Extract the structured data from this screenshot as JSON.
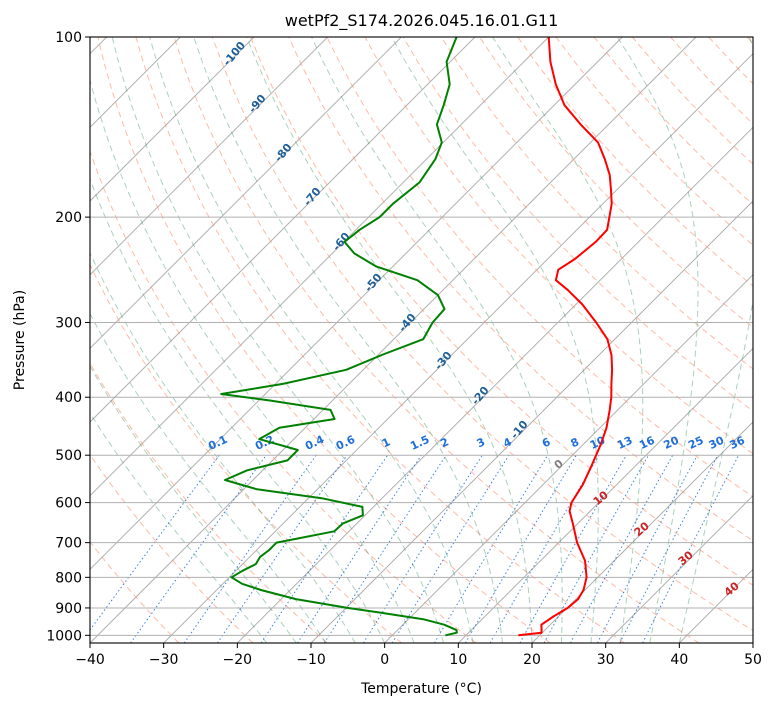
{
  "chart_data": {
    "type": "line",
    "subtype": "skew-t log-p",
    "title": "wetPf2_S174.2026.045.16.01.G11",
    "xlabel": "Temperature (°C)",
    "ylabel": "Pressure (hPa)",
    "xlim": [
      -40,
      50
    ],
    "ylim": [
      1030,
      100
    ],
    "yscale": "log",
    "grid": true,
    "x_ticks": [
      "−40",
      "−30",
      "−20",
      "−10",
      "0",
      "10",
      "20",
      "30",
      "40",
      "50"
    ],
    "x_tick_values": [
      -40,
      -30,
      -20,
      -10,
      0,
      10,
      20,
      30,
      40,
      50
    ],
    "y_ticks": [
      "100",
      "200",
      "300",
      "400",
      "500",
      "600",
      "700",
      "800",
      "900",
      "1000"
    ],
    "y_tick_values": [
      100,
      200,
      300,
      400,
      500,
      600,
      700,
      800,
      900,
      1000
    ],
    "series": [
      {
        "color": "#ff0000",
        "values": [
          [
            1000,
            17.1
          ],
          [
            990,
            19.9
          ],
          [
            960,
            18.8
          ],
          [
            930,
            19.3
          ],
          [
            900,
            20.1
          ],
          [
            870,
            20.3
          ],
          [
            840,
            19.8
          ],
          [
            800,
            18.5
          ],
          [
            750,
            16.0
          ],
          [
            700,
            12.5
          ],
          [
            650,
            9.3
          ],
          [
            620,
            7.2
          ],
          [
            600,
            6.3
          ],
          [
            560,
            5.4
          ],
          [
            520,
            4.0
          ],
          [
            480,
            2.4
          ],
          [
            450,
            0.9
          ],
          [
            420,
            -1.1
          ],
          [
            400,
            -2.6
          ],
          [
            380,
            -4.4
          ],
          [
            360,
            -6.2
          ],
          [
            340,
            -8.3
          ],
          [
            320,
            -11.0
          ],
          [
            300,
            -14.8
          ],
          [
            280,
            -19.1
          ],
          [
            265,
            -23.0
          ],
          [
            255,
            -26.0
          ],
          [
            245,
            -27.1
          ],
          [
            235,
            -26.3
          ],
          [
            220,
            -25.8
          ],
          [
            210,
            -25.9
          ],
          [
            200,
            -27.3
          ],
          [
            190,
            -28.8
          ],
          [
            180,
            -30.8
          ],
          [
            170,
            -33.0
          ],
          [
            160,
            -35.8
          ],
          [
            150,
            -39.0
          ],
          [
            140,
            -43.8
          ],
          [
            130,
            -48.6
          ],
          [
            120,
            -52.6
          ],
          [
            110,
            -56.4
          ],
          [
            100,
            -60.0
          ]
        ]
      },
      {
        "color": "#008000",
        "values": [
          [
            1000,
            7.2
          ],
          [
            990,
            8.4
          ],
          [
            980,
            8.0
          ],
          [
            960,
            5.6
          ],
          [
            940,
            2.0
          ],
          [
            920,
            -3.6
          ],
          [
            900,
            -9.8
          ],
          [
            870,
            -18.0
          ],
          [
            840,
            -24.0
          ],
          [
            820,
            -27.4
          ],
          [
            800,
            -29.7
          ],
          [
            780,
            -29.1
          ],
          [
            760,
            -28.2
          ],
          [
            740,
            -28.6
          ],
          [
            720,
            -28.3
          ],
          [
            700,
            -28.3
          ],
          [
            690,
            -26.2
          ],
          [
            670,
            -22.0
          ],
          [
            650,
            -21.9
          ],
          [
            630,
            -20.3
          ],
          [
            610,
            -21.5
          ],
          [
            590,
            -28.2
          ],
          [
            570,
            -38.2
          ],
          [
            550,
            -43.8
          ],
          [
            530,
            -42.1
          ],
          [
            510,
            -38.0
          ],
          [
            490,
            -38.0
          ],
          [
            470,
            -44.7
          ],
          [
            450,
            -43.5
          ],
          [
            435,
            -37.2
          ],
          [
            420,
            -39.0
          ],
          [
            405,
            -48.5
          ],
          [
            395,
            -56.0
          ],
          [
            380,
            -49.0
          ],
          [
            360,
            -42.3
          ],
          [
            340,
            -39.5
          ],
          [
            320,
            -36.0
          ],
          [
            300,
            -37.0
          ],
          [
            285,
            -37.2
          ],
          [
            270,
            -40.0
          ],
          [
            255,
            -44.8
          ],
          [
            242,
            -52.2
          ],
          [
            230,
            -57.0
          ],
          [
            220,
            -59.9
          ],
          [
            210,
            -59.5
          ],
          [
            200,
            -58.5
          ],
          [
            190,
            -58.5
          ],
          [
            175,
            -57.8
          ],
          [
            160,
            -58.8
          ],
          [
            150,
            -60.2
          ],
          [
            140,
            -63.3
          ],
          [
            130,
            -65.0
          ],
          [
            120,
            -67.0
          ],
          [
            110,
            -70.5
          ],
          [
            100,
            -72.5
          ]
        ]
      }
    ],
    "dry_adiabat_labels": [
      "-100",
      "-90",
      "-80",
      "-70",
      "-60",
      "-50",
      "-40",
      "-30",
      "-20",
      "-10"
    ],
    "moist_adiabat_labels": [
      "0",
      "10",
      "20",
      "30",
      "40"
    ],
    "mixing_ratio_labels": [
      "0.1",
      "0.2",
      "0.4",
      "0.6",
      "1",
      "1.5",
      "2",
      "3",
      "4",
      "6",
      "8",
      "10",
      "13",
      "16",
      "20",
      "25",
      "30",
      "36"
    ],
    "colors": {
      "isotherms": "#b0b0b0",
      "dry_adiabats": "#ff8c69",
      "moist_adiabats": "#2e8b57",
      "mixing_ratio": "#1e6fd9",
      "dry_label": "#1f5f99",
      "moist_label": "#cc2222",
      "temperature": "#ff0000",
      "dewpoint": "#008000"
    }
  }
}
